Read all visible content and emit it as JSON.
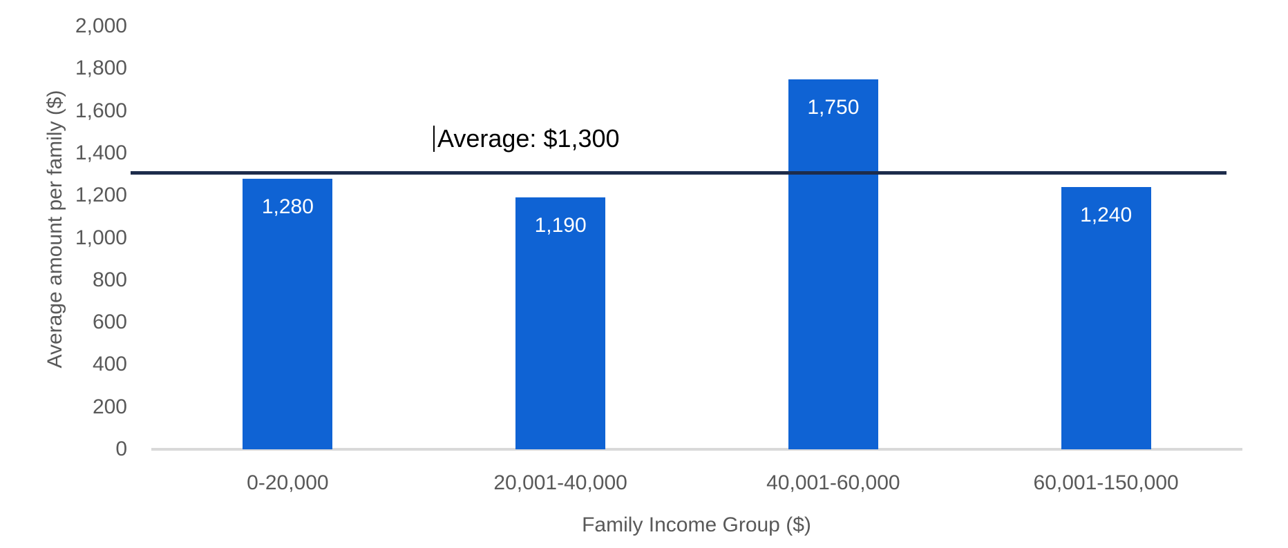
{
  "chart_data": {
    "type": "bar",
    "title": "",
    "xlabel": "Family Income Group ($)",
    "ylabel": "Average amount per family ($)",
    "categories": [
      "0-20,000",
      "20,001-40,000",
      "40,001-60,000",
      "60,001-150,000"
    ],
    "values": [
      1280,
      1190,
      1750,
      1240
    ],
    "value_labels": [
      "1,280",
      "1,190",
      "1,750",
      "1,240"
    ],
    "ylim": [
      0,
      2000
    ],
    "ytick_step": 200,
    "ytick_labels": [
      "0",
      "200",
      "400",
      "600",
      "800",
      "1,000",
      "1,200",
      "1,400",
      "1,600",
      "1,800",
      "2,000"
    ],
    "grid": false,
    "legend": "none",
    "average_line": {
      "value": 1300,
      "label": "Average: $1,300",
      "color": "#1D2C4B"
    },
    "colors": {
      "bar": "#0F63D4",
      "data_label": "#FFFFFF",
      "axis_text": "#595959",
      "axis_line": "#D9D9D9",
      "annotation_text": "#000000"
    }
  }
}
